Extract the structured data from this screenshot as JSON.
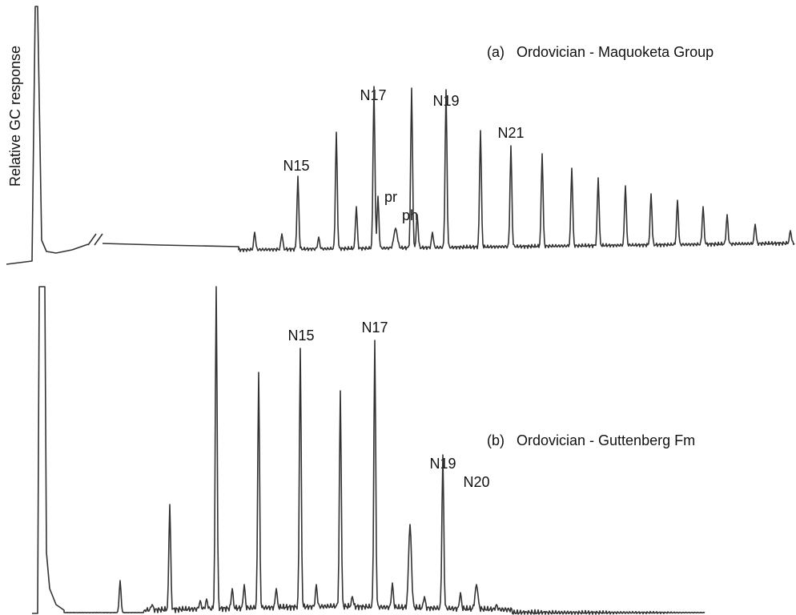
{
  "y_axis_label": "Relative GC response",
  "panels": [
    {
      "label": "(a)",
      "title": "Ordovician - Maquoketa Group",
      "peaks": [
        "N15",
        "N17",
        "N19",
        "N21",
        "pr",
        "ph"
      ]
    },
    {
      "label": "(b)",
      "title": "Ordovician - Guttenberg Fm",
      "peaks": [
        "N15",
        "N17",
        "N19",
        "N20"
      ]
    }
  ]
}
